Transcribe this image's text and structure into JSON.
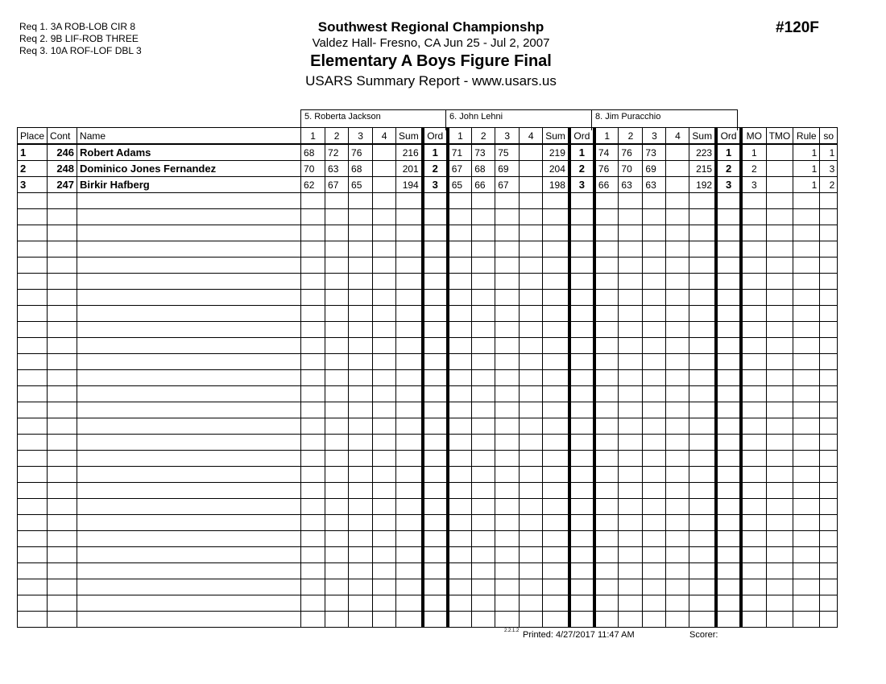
{
  "header": {
    "requirements": [
      "Req  1.  3A ROB-LOB CIR 8",
      "Req  2.  9B LIF-ROB THREE",
      "Req  3.  10A ROF-LOF DBL 3"
    ],
    "title": "Southwest Regional Championshp",
    "venue": "Valdez Hall- Fresno, CA  Jun 25 - Jul 2, 2007",
    "event": "Elementary A Boys Figure Final",
    "subtitle": "USARS Summary Report - www.usars.us",
    "event_number": "#120F"
  },
  "judges": [
    "5.  Roberta Jackson",
    "6.  John Lehni",
    "8.  Jim Puracchio"
  ],
  "columns": {
    "place": "Place",
    "cont": "Cont",
    "name": "Name",
    "scores": [
      "1",
      "2",
      "3",
      "4"
    ],
    "sum": "Sum",
    "ord": "Ord",
    "mo": "MO",
    "tmo": "TMO",
    "rule": "Rule",
    "so": "so"
  },
  "rows": [
    {
      "place": "1",
      "cont": "246",
      "name": "Robert Adams",
      "judges": [
        {
          "s": [
            "68",
            "72",
            "76",
            ""
          ],
          "sum": "216",
          "ord": "1"
        },
        {
          "s": [
            "71",
            "73",
            "75",
            ""
          ],
          "sum": "219",
          "ord": "1"
        },
        {
          "s": [
            "74",
            "76",
            "73",
            ""
          ],
          "sum": "223",
          "ord": "1"
        }
      ],
      "mo": "1",
      "tmo": "",
      "rule": "1",
      "so": "1"
    },
    {
      "place": "2",
      "cont": "248",
      "name": "Dominico Jones Fernandez",
      "judges": [
        {
          "s": [
            "70",
            "63",
            "68",
            ""
          ],
          "sum": "201",
          "ord": "2"
        },
        {
          "s": [
            "67",
            "68",
            "69",
            ""
          ],
          "sum": "204",
          "ord": "2"
        },
        {
          "s": [
            "76",
            "70",
            "69",
            ""
          ],
          "sum": "215",
          "ord": "2"
        }
      ],
      "mo": "2",
      "tmo": "",
      "rule": "1",
      "so": "3"
    },
    {
      "place": "3",
      "cont": "247",
      "name": "Birkir Hafberg",
      "judges": [
        {
          "s": [
            "62",
            "67",
            "65",
            ""
          ],
          "sum": "194",
          "ord": "3"
        },
        {
          "s": [
            "65",
            "66",
            "67",
            ""
          ],
          "sum": "198",
          "ord": "3"
        },
        {
          "s": [
            "66",
            "63",
            "63",
            ""
          ],
          "sum": "192",
          "ord": "3"
        }
      ],
      "mo": "3",
      "tmo": "",
      "rule": "1",
      "so": "2"
    }
  ],
  "footer": {
    "code": "2.2.1.2",
    "printed": "Printed:  4/27/2017  11:47 AM",
    "scorer": "Scorer:"
  }
}
